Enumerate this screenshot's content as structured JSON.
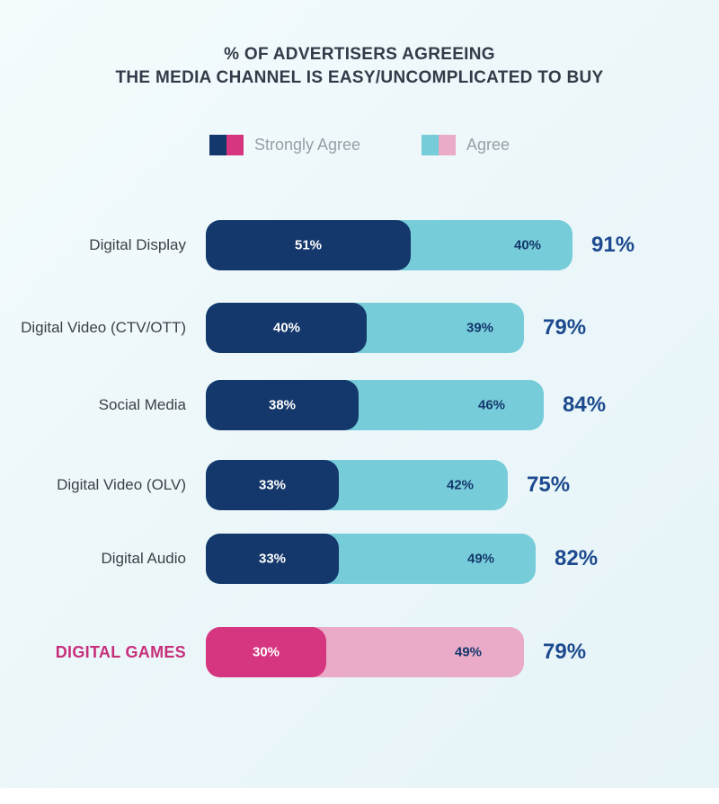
{
  "title": {
    "line1": "% OF ADVERTISERS AGREEING",
    "line2": "THE MEDIA CHANNEL IS EASY/UNCOMPLICATED TO BUY"
  },
  "legend": [
    {
      "label": "Strongly Agree",
      "swatch_left": "#14386b",
      "swatch_right": "#d6357f"
    },
    {
      "label": "Agree",
      "swatch_left": "#76ccd9",
      "swatch_right": "#e9abc8"
    }
  ],
  "chart_data": {
    "type": "bar",
    "orientation": "horizontal",
    "stacked": true,
    "title": "% OF ADVERTISERS AGREEING THE MEDIA CHANNEL IS EASY/UNCOMPLICATED TO BUY",
    "categories": [
      "Digital Display",
      "Digital Video (CTV/OTT)",
      "Social Media",
      "Digital Video (OLV)",
      "Digital Audio",
      "DIGITAL GAMES"
    ],
    "series": [
      {
        "name": "Strongly Agree",
        "values": [
          51,
          40,
          38,
          33,
          33,
          30
        ]
      },
      {
        "name": "Agree",
        "values": [
          40,
          39,
          46,
          42,
          49,
          49
        ]
      }
    ],
    "totals": [
      91,
      79,
      84,
      75,
      82,
      79
    ],
    "xlim": [
      0,
      100
    ],
    "grid": false,
    "legend_position": "top",
    "highlighted_category": "DIGITAL GAMES"
  },
  "rows": [
    {
      "category": "Digital Display",
      "strongly_label": "51%",
      "agree_label": "40%",
      "total_label": "91%",
      "highlight": false
    },
    {
      "category": "Digital Video (CTV/OTT)",
      "strongly_label": "40%",
      "agree_label": "39%",
      "total_label": "79%",
      "highlight": false
    },
    {
      "category": "Social Media",
      "strongly_label": "38%",
      "agree_label": "46%",
      "total_label": "84%",
      "highlight": false
    },
    {
      "category": "Digital Video (OLV)",
      "strongly_label": "33%",
      "agree_label": "42%",
      "total_label": "75%",
      "highlight": false
    },
    {
      "category": "Digital Audio",
      "strongly_label": "33%",
      "agree_label": "49%",
      "total_label": "82%",
      "highlight": false
    },
    {
      "category": "DIGITAL GAMES",
      "strongly_label": "30%",
      "agree_label": "49%",
      "total_label": "79%",
      "highlight": true
    }
  ],
  "colors": {
    "background": "#eaf6f9",
    "strongly_agree": "#14386b",
    "agree": "#76ccd9",
    "strongly_agree_highlight": "#d6357f",
    "agree_highlight": "#e9abc8",
    "total_text": "#1d4a8e",
    "title_text": "#333b49",
    "category_text": "#3b4148",
    "highlight_category_text": "#c72f7b",
    "legend_text": "#98a0a8"
  }
}
